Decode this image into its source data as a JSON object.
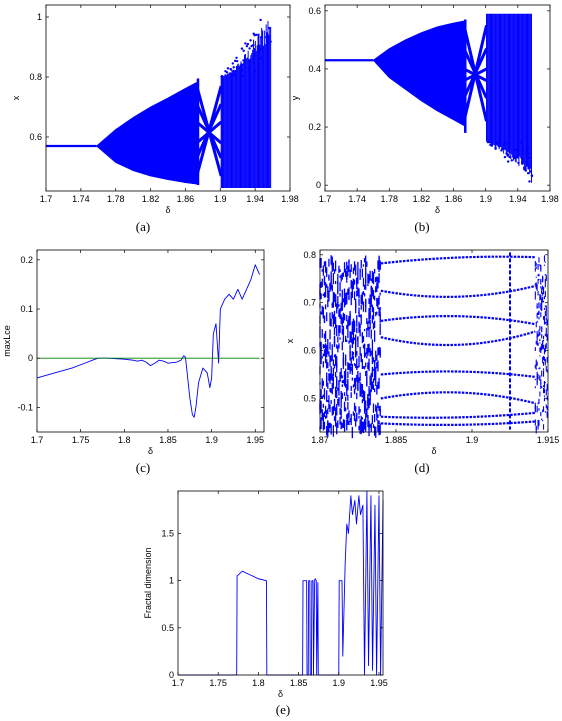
{
  "chart_data": [
    {
      "id": "a",
      "type": "scatter",
      "caption": "(a)",
      "xlabel": "δ",
      "ylabel": "x",
      "xlim": [
        1.7,
        1.98
      ],
      "ylim": [
        0.42,
        1.04
      ],
      "xticks": [
        1.7,
        1.74,
        1.78,
        1.82,
        1.86,
        1.9,
        1.94,
        1.98
      ],
      "yticks": [
        0.6,
        0.8,
        1.0
      ],
      "xtick_labels": [
        "1.7",
        "1.74",
        "1.78",
        "1.82",
        "1.86",
        "1.9",
        "1.94",
        "1.98"
      ],
      "ytick_labels": [
        "0.6",
        "0.8",
        "1"
      ],
      "color": "#0000ff",
      "data": {
        "fixed_point": {
          "x": [
            1.7,
            1.758
          ],
          "y": 0.57
        },
        "envelope_upper": {
          "x": [
            1.758,
            1.78,
            1.8,
            1.82,
            1.84,
            1.86,
            1.873
          ],
          "y": [
            0.57,
            0.625,
            0.665,
            0.7,
            0.73,
            0.762,
            0.782
          ]
        },
        "envelope_lower": {
          "x": [
            1.758,
            1.78,
            1.8,
            1.82,
            1.84,
            1.86,
            1.873
          ],
          "y": [
            0.57,
            0.515,
            0.488,
            0.47,
            0.458,
            0.448,
            0.443
          ]
        },
        "window": {
          "x_start": 1.873,
          "x_end": 1.901,
          "y_max": 0.795,
          "y_min": 0.44
        },
        "chaotic": {
          "x_start": 1.901,
          "x_end": 1.958,
          "y_min": 0.43,
          "y_max_start": 0.8,
          "y_max_end": 1.04
        }
      }
    },
    {
      "id": "b",
      "type": "scatter",
      "caption": "(b)",
      "xlabel": "δ",
      "ylabel": "y",
      "xlim": [
        1.7,
        1.98
      ],
      "ylim": [
        -0.02,
        0.62
      ],
      "xticks": [
        1.7,
        1.74,
        1.78,
        1.82,
        1.86,
        1.9,
        1.94,
        1.98
      ],
      "yticks": [
        0,
        0.2,
        0.4,
        0.6
      ],
      "xtick_labels": [
        "1.7",
        "1.74",
        "1.78",
        "1.82",
        "1.86",
        "1.9",
        "1.94",
        "1.98"
      ],
      "ytick_labels": [
        "0",
        "0.2",
        "0.4",
        "0.6"
      ],
      "color": "#0000ff",
      "data": {
        "fixed_point": {
          "x": [
            1.7,
            1.76
          ],
          "y": 0.43
        },
        "envelope_upper": {
          "x": [
            1.76,
            1.78,
            1.8,
            1.82,
            1.84,
            1.86,
            1.873
          ],
          "y": [
            0.43,
            0.47,
            0.5,
            0.525,
            0.545,
            0.558,
            0.565
          ]
        },
        "envelope_lower": {
          "x": [
            1.76,
            1.78,
            1.8,
            1.82,
            1.84,
            1.86,
            1.873
          ],
          "y": [
            0.43,
            0.37,
            0.33,
            0.29,
            0.255,
            0.225,
            0.205
          ]
        },
        "window": {
          "x_start": 1.873,
          "x_end": 1.901,
          "y_max": 0.57,
          "y_min": 0.18
        },
        "chaotic": {
          "x_start": 1.901,
          "x_end": 1.958,
          "y_max": 0.59,
          "y_min_start": 0.15,
          "y_min_end": 0.0
        }
      }
    },
    {
      "id": "c",
      "type": "line",
      "caption": "(c)",
      "xlabel": "δ",
      "ylabel": "maxLce",
      "xlim": [
        1.7,
        1.96
      ],
      "ylim": [
        -0.15,
        0.22
      ],
      "xticks": [
        1.7,
        1.75,
        1.8,
        1.85,
        1.9,
        1.95
      ],
      "yticks": [
        -0.1,
        0,
        0.1,
        0.2
      ],
      "xtick_labels": [
        "1.7",
        "1.75",
        "1.8",
        "1.85",
        "1.9",
        "1.95"
      ],
      "ytick_labels": [
        "-0.1",
        "0",
        "0.1",
        "0.2"
      ],
      "series": [
        {
          "color": "#0000ff",
          "x": [
            1.7,
            1.72,
            1.74,
            1.755,
            1.765,
            1.77,
            1.78,
            1.8,
            1.81,
            1.815,
            1.82,
            1.825,
            1.83,
            1.835,
            1.84,
            1.845,
            1.85,
            1.86,
            1.865,
            1.868,
            1.87,
            1.872,
            1.875,
            1.878,
            1.88,
            1.882,
            1.885,
            1.89,
            1.895,
            1.898,
            1.9,
            1.902,
            1.905,
            1.908,
            1.91,
            1.915,
            1.92,
            1.925,
            1.93,
            1.935,
            1.94,
            1.945,
            1.95,
            1.955
          ],
          "y": [
            -0.04,
            -0.03,
            -0.02,
            -0.01,
            -0.003,
            0.0,
            0.0,
            -0.002,
            -0.004,
            -0.006,
            -0.004,
            -0.008,
            -0.015,
            -0.01,
            -0.004,
            -0.006,
            -0.01,
            -0.008,
            -0.004,
            0.005,
            0.002,
            -0.03,
            -0.08,
            -0.115,
            -0.12,
            -0.1,
            -0.05,
            -0.02,
            -0.03,
            -0.06,
            -0.04,
            0.05,
            0.07,
            -0.01,
            0.1,
            0.12,
            0.13,
            0.12,
            0.14,
            0.12,
            0.14,
            0.16,
            0.19,
            0.17
          ]
        },
        {
          "color": "#008000",
          "x": [
            1.7,
            1.955
          ],
          "y": [
            0,
            0
          ]
        }
      ]
    },
    {
      "id": "d",
      "type": "scatter",
      "caption": "(d)",
      "xlabel": "δ",
      "ylabel": "x",
      "xlim": [
        1.87,
        1.915
      ],
      "ylim": [
        0.43,
        0.81
      ],
      "xticks": [
        1.87,
        1.885,
        1.9,
        1.915
      ],
      "yticks": [
        0.5,
        0.6,
        0.7,
        0.8
      ],
      "xtick_labels": [
        "1.87",
        "1.885",
        "1.9",
        "1.915"
      ],
      "ytick_labels": [
        "0.5",
        "0.6",
        "0.7",
        "0.8"
      ],
      "color": "#0000ff",
      "data": {
        "chaotic_band": {
          "x_start": 1.87,
          "x_end": 1.882
        },
        "window": {
          "x_start": 1.882,
          "x_end": 1.9125
        },
        "chaotic_band_right": {
          "x_start": 1.9125,
          "x_end": 1.915
        },
        "dashed_line_x": 1.9075,
        "branch_pairs": [
          [
            0.782,
            0.8,
            0.795
          ],
          [
            0.725,
            0.695,
            0.735
          ],
          [
            0.662,
            0.685,
            0.655
          ],
          [
            0.628,
            0.59,
            0.64
          ],
          [
            0.55,
            0.565,
            0.545
          ],
          [
            0.5,
            0.53,
            0.49
          ],
          [
            0.462,
            0.455,
            0.47
          ],
          [
            0.448,
            0.44,
            0.452
          ]
        ]
      }
    },
    {
      "id": "e",
      "type": "line",
      "caption": "(e)",
      "xlabel": "δ",
      "ylabel": "Fractal dimension",
      "xlim": [
        1.7,
        1.955
      ],
      "ylim": [
        0,
        1.95
      ],
      "xticks": [
        1.7,
        1.75,
        1.8,
        1.85,
        1.9,
        1.95
      ],
      "yticks": [
        0,
        0.5,
        1,
        1.5
      ],
      "xtick_labels": [
        "1.7",
        "1.75",
        "1.8",
        "1.85",
        "1.9",
        "1.95"
      ],
      "ytick_labels": [
        "0",
        "0.5",
        "1",
        "1.5"
      ],
      "series": [
        {
          "color": "#0000ff",
          "x": [
            1.7,
            1.773,
            1.7735,
            1.78,
            1.79,
            1.8,
            1.81,
            1.8105,
            1.855,
            1.8555,
            1.858,
            1.86,
            1.8605,
            1.862,
            1.8625,
            1.864,
            1.8645,
            1.866,
            1.8665,
            1.868,
            1.8685,
            1.87,
            1.8705,
            1.872,
            1.8725,
            1.874,
            1.8745,
            1.9,
            1.9005,
            1.904,
            1.905,
            1.908,
            1.91,
            1.912,
            1.915,
            1.917,
            1.92,
            1.922,
            1.925,
            1.927,
            1.93,
            1.932,
            1.935,
            1.937,
            1.94,
            1.942,
            1.945,
            1.947,
            1.95,
            1.952,
            1.955
          ],
          "y": [
            0,
            0,
            1.05,
            1.1,
            1.06,
            1.02,
            1.0,
            0,
            0,
            1.0,
            1.0,
            1.0,
            0,
            0,
            1.0,
            1.0,
            0,
            0,
            1.0,
            1.0,
            0,
            1.0,
            1.02,
            1.0,
            0,
            0.98,
            0,
            0,
            1.0,
            1.0,
            0.2,
            1.2,
            1.6,
            1.5,
            1.9,
            1.7,
            1.85,
            1.6,
            1.9,
            1.7,
            1.8,
            0,
            1.95,
            0.1,
            1.9,
            0.05,
            1.8,
            0,
            1.9,
            0,
            1.85
          ]
        }
      ]
    }
  ]
}
